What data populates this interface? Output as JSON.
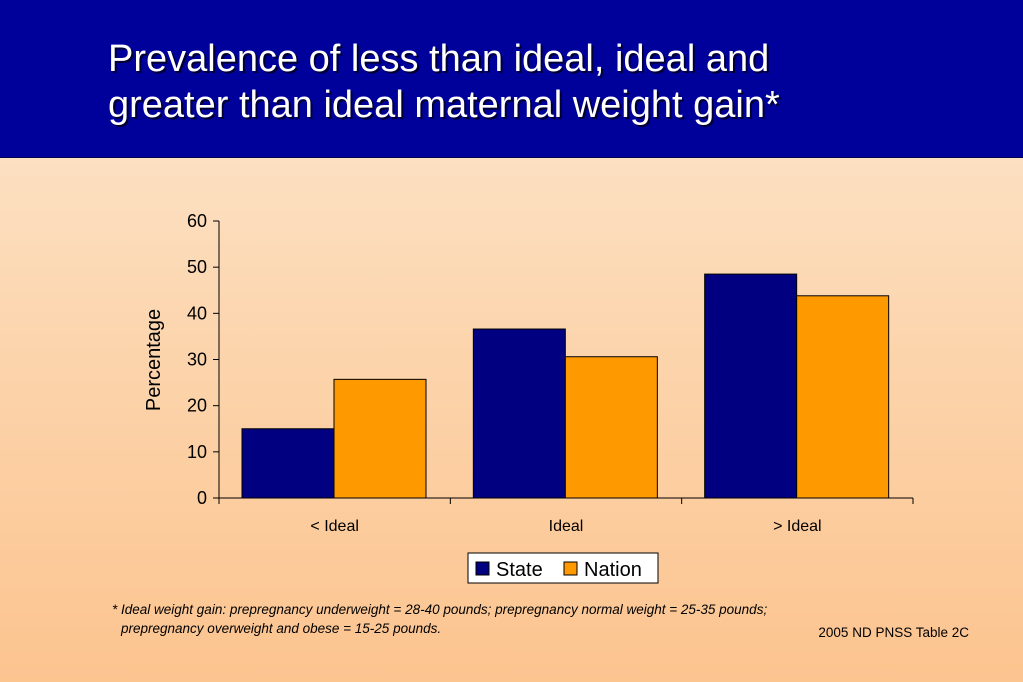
{
  "title_lines": [
    "Prevalence of less than ideal, ideal and",
    "greater than ideal maternal weight gain*"
  ],
  "colors": {
    "header_bg": "#00009a",
    "state": "#000080",
    "nation": "#ff9900"
  },
  "chart_data": {
    "type": "bar",
    "title": "",
    "xlabel": "",
    "ylabel": "Percentage",
    "categories": [
      "< Ideal",
      "Ideal",
      "> Ideal"
    ],
    "series": [
      {
        "name": "State",
        "values": [
          15.0,
          36.6,
          48.5
        ],
        "color": "#000080"
      },
      {
        "name": "Nation",
        "values": [
          25.7,
          30.6,
          43.8
        ],
        "color": "#ff9900"
      }
    ],
    "ylim": [
      0,
      60
    ],
    "yticks": [
      "0",
      "10",
      "20",
      "30",
      "40",
      "50",
      "60"
    ],
    "grid": false,
    "legend_position": "bottom"
  },
  "footnote": {
    "line1": "*  Ideal weight gain: prepregnancy underweight = 28-40 pounds; prepregnancy normal weight = 25-35 pounds;",
    "line2": "prepregnancy overweight and obese = 15-25 pounds."
  },
  "source": "2005 ND PNSS Table 2C"
}
